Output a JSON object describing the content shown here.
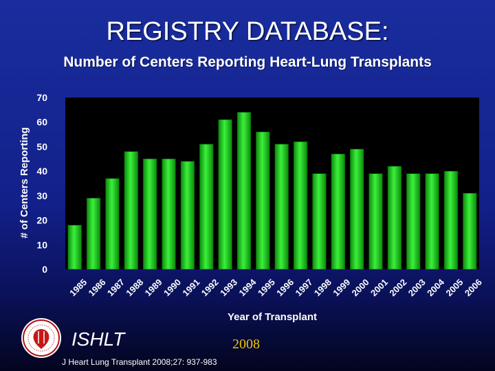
{
  "header": {
    "title": "REGISTRY DATABASE:",
    "subtitle": "Number of Centers Reporting Heart-Lung Transplants"
  },
  "footer": {
    "org": "ISHLT",
    "year": "2008",
    "citation": "J Heart Lung Transplant 2008;27: 937-983",
    "logo_icon": "ishlt-seal-icon"
  },
  "colors": {
    "background": "#1a2d9e",
    "bar": "#22dd22",
    "plot_area": "#000000",
    "year_text": "#f2c400"
  },
  "chart_data": {
    "type": "bar",
    "categories": [
      "1985",
      "1986",
      "1987",
      "1988",
      "1989",
      "1990",
      "1991",
      "1992",
      "1993",
      "1994",
      "1995",
      "1996",
      "1997",
      "1998",
      "1999",
      "2000",
      "2001",
      "2002",
      "2003",
      "2004",
      "2005",
      "2006"
    ],
    "values": [
      18,
      29,
      37,
      48,
      45,
      45,
      44,
      51,
      61,
      64,
      56,
      51,
      52,
      39,
      47,
      49,
      39,
      42,
      39,
      39,
      40,
      31
    ],
    "xlabel": "Year of Transplant",
    "ylabel": "# of Centers Reporting",
    "ylim": [
      0,
      70
    ],
    "yticks": [
      0,
      10,
      20,
      30,
      40,
      50,
      60,
      70
    ],
    "grid": false,
    "legend": "none"
  }
}
